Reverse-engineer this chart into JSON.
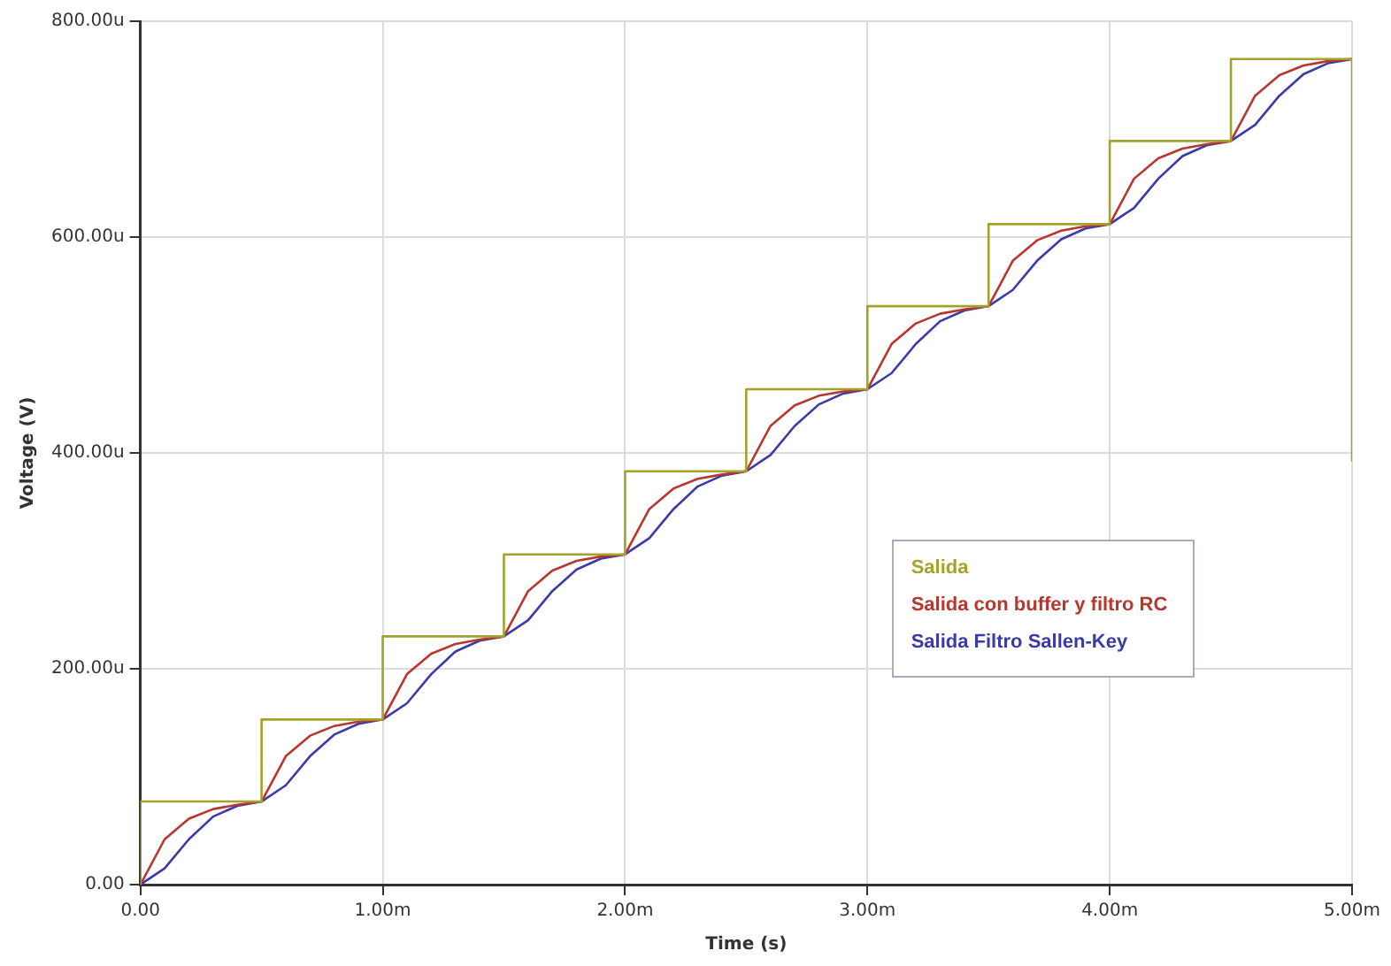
{
  "chart_data": {
    "type": "line",
    "xlabel": "Time (s)",
    "ylabel": "Voltage (V)",
    "x": [
      0,
      0.1,
      0.2,
      0.3,
      0.4,
      0.5,
      0.6,
      0.7,
      0.8,
      0.9,
      1,
      1.1,
      1.2,
      1.3,
      1.4,
      1.5,
      1.6,
      1.7,
      1.8,
      1.9,
      2,
      2.1,
      2.2,
      2.3,
      2.4,
      2.5,
      2.6,
      2.7,
      2.8,
      2.9,
      3,
      3.1,
      3.2,
      3.3,
      3.4,
      3.5,
      3.6,
      3.7,
      3.8,
      3.9,
      4,
      4.1,
      4.2,
      4.3,
      4.4,
      4.5,
      4.6,
      4.7,
      4.8,
      4.9,
      5
    ],
    "series": [
      {
        "name": "Salida",
        "type": "step",
        "color": "#a3a32a",
        "x": [
          0,
          0,
          0.5,
          1,
          1.5,
          2,
          2.5,
          3,
          3.5,
          4,
          4.5,
          5
        ],
        "values": [
          0,
          77,
          153,
          230,
          306,
          383,
          459,
          536,
          612,
          689,
          765,
          392
        ]
      },
      {
        "name": "Salida con buffer y filtro RC",
        "color": "#b8362e",
        "values": [
          0,
          42,
          61,
          70,
          74,
          77,
          119,
          138,
          147,
          151,
          153,
          195,
          214,
          223,
          227,
          230,
          272,
          291,
          300,
          304,
          306,
          348,
          367,
          376,
          380,
          383,
          425,
          444,
          453,
          457,
          459,
          501,
          520,
          529,
          533,
          536,
          578,
          597,
          606,
          610,
          612,
          654,
          673,
          682,
          686,
          689,
          731,
          750,
          759,
          763,
          765
        ]
      },
      {
        "name": "Salida Filtro Sallen-Key",
        "color": "#3a3aa8",
        "values": [
          0,
          15,
          42,
          63,
          73,
          77,
          92,
          119,
          139,
          149,
          153,
          168,
          195,
          216,
          226,
          230,
          245,
          272,
          292,
          302,
          306,
          321,
          348,
          369,
          379,
          383,
          398,
          425,
          445,
          455,
          459,
          474,
          501,
          522,
          532,
          536,
          551,
          578,
          598,
          608,
          612,
          627,
          654,
          675,
          685,
          689,
          704,
          731,
          751,
          761,
          765
        ]
      }
    ],
    "xlim": [
      0,
      5
    ],
    "xticks": [
      {
        "value": 0,
        "label": "0.00"
      },
      {
        "value": 1,
        "label": "1.00m"
      },
      {
        "value": 2,
        "label": "2.00m"
      },
      {
        "value": 3,
        "label": "3.00m"
      },
      {
        "value": 4,
        "label": "4.00m"
      },
      {
        "value": 5,
        "label": "5.00m"
      }
    ],
    "ylim": [
      0,
      800
    ],
    "yticks": [
      {
        "value": 0,
        "label": "0.00"
      },
      {
        "value": 200,
        "label": "200.00u"
      },
      {
        "value": 400,
        "label": "400.00u"
      },
      {
        "value": 600,
        "label": "600.00u"
      },
      {
        "value": 800,
        "label": "800.00u"
      }
    ],
    "grid": true,
    "legend": "bottom right",
    "marker": "none",
    "line_style": "solid"
  }
}
